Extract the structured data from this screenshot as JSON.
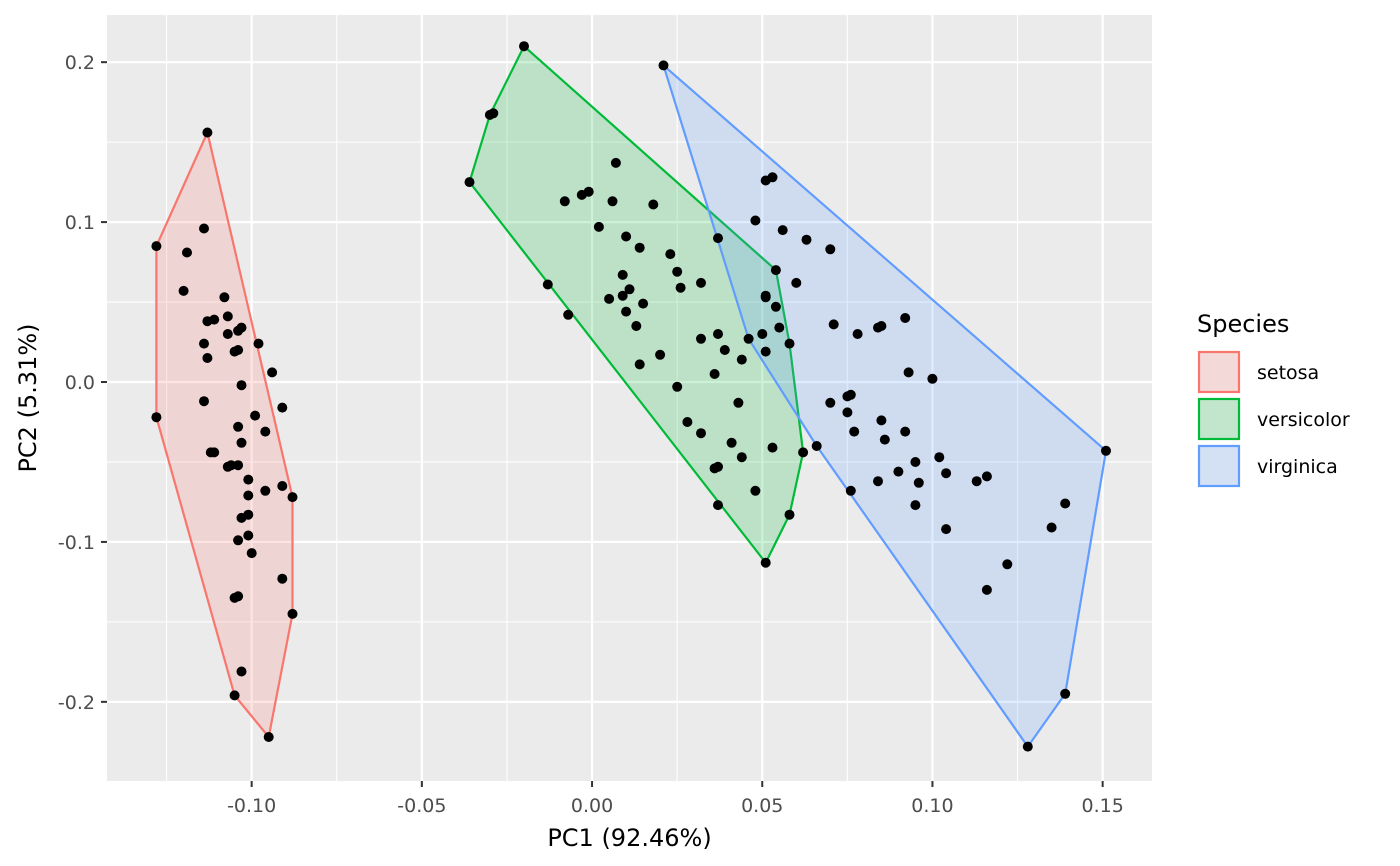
{
  "chart_data": {
    "type": "scatter",
    "title": "",
    "xlabel": "PC1 (92.46%)",
    "ylabel": "PC2 (5.31%)",
    "xlim": [
      -0.1425,
      0.1645
    ],
    "ylim": [
      -0.2495,
      0.2295
    ],
    "x_ticks": [
      -0.1,
      -0.05,
      0.0,
      0.05,
      0.1,
      0.15
    ],
    "x_tick_labels": [
      "-0.10",
      "-0.05",
      "0.00",
      "0.05",
      "0.10",
      "0.15"
    ],
    "y_ticks": [
      -0.2,
      -0.1,
      0.0,
      0.1,
      0.2
    ],
    "y_tick_labels": [
      "-0.2",
      "-0.1",
      "0.0",
      "0.1",
      "0.2"
    ],
    "grid": true,
    "legend": {
      "title": "Species",
      "position": "right"
    },
    "point_color": "#000000",
    "panel_background": "#ebebeb",
    "series": [
      {
        "name": "setosa",
        "color": "#f8766d",
        "fill": "#f8766d",
        "hull": [
          [
            -0.113,
            0.156
          ],
          [
            -0.128,
            0.085
          ],
          [
            -0.128,
            -0.022
          ],
          [
            -0.105,
            -0.196
          ],
          [
            -0.095,
            -0.222
          ],
          [
            -0.088,
            -0.145
          ],
          [
            -0.088,
            -0.072
          ],
          [
            -0.113,
            0.156
          ]
        ],
        "points": [
          [
            -0.113,
            0.156
          ],
          [
            -0.128,
            0.085
          ],
          [
            -0.114,
            0.096
          ],
          [
            -0.119,
            0.081
          ],
          [
            -0.12,
            0.057
          ],
          [
            -0.108,
            0.053
          ],
          [
            -0.113,
            0.038
          ],
          [
            -0.111,
            0.039
          ],
          [
            -0.107,
            0.041
          ],
          [
            -0.107,
            0.03
          ],
          [
            -0.104,
            0.032
          ],
          [
            -0.103,
            0.034
          ],
          [
            -0.098,
            0.024
          ],
          [
            -0.114,
            0.024
          ],
          [
            -0.113,
            0.015
          ],
          [
            -0.105,
            0.019
          ],
          [
            -0.104,
            0.02
          ],
          [
            -0.094,
            0.006
          ],
          [
            -0.103,
            -0.002
          ],
          [
            -0.114,
            -0.012
          ],
          [
            -0.128,
            -0.022
          ],
          [
            -0.099,
            -0.021
          ],
          [
            -0.091,
            -0.016
          ],
          [
            -0.104,
            -0.028
          ],
          [
            -0.096,
            -0.031
          ],
          [
            -0.103,
            -0.038
          ],
          [
            -0.112,
            -0.044
          ],
          [
            -0.111,
            -0.044
          ],
          [
            -0.107,
            -0.053
          ],
          [
            -0.106,
            -0.052
          ],
          [
            -0.104,
            -0.052
          ],
          [
            -0.101,
            -0.061
          ],
          [
            -0.096,
            -0.068
          ],
          [
            -0.091,
            -0.065
          ],
          [
            -0.088,
            -0.072
          ],
          [
            -0.101,
            -0.071
          ],
          [
            -0.103,
            -0.085
          ],
          [
            -0.101,
            -0.083
          ],
          [
            -0.104,
            -0.099
          ],
          [
            -0.101,
            -0.096
          ],
          [
            -0.1,
            -0.107
          ],
          [
            -0.091,
            -0.123
          ],
          [
            -0.105,
            -0.135
          ],
          [
            -0.104,
            -0.134
          ],
          [
            -0.088,
            -0.145
          ],
          [
            -0.103,
            -0.181
          ],
          [
            -0.105,
            -0.196
          ],
          [
            -0.095,
            -0.222
          ]
        ]
      },
      {
        "name": "versicolor",
        "color": "#00ba38",
        "fill": "#00ba38",
        "hull": [
          [
            -0.036,
            0.125
          ],
          [
            -0.03,
            0.167
          ],
          [
            -0.02,
            0.21
          ],
          [
            0.054,
            0.07
          ],
          [
            0.058,
            0.024
          ],
          [
            0.062,
            -0.044
          ],
          [
            0.058,
            -0.083
          ],
          [
            0.051,
            -0.113
          ],
          [
            -0.036,
            0.125
          ]
        ],
        "points": [
          [
            -0.02,
            0.21
          ],
          [
            -0.03,
            0.167
          ],
          [
            -0.029,
            0.168
          ],
          [
            -0.036,
            0.125
          ],
          [
            0.007,
            0.137
          ],
          [
            -0.008,
            0.113
          ],
          [
            -0.003,
            0.117
          ],
          [
            -0.001,
            0.119
          ],
          [
            0.006,
            0.113
          ],
          [
            0.018,
            0.111
          ],
          [
            0.002,
            0.097
          ],
          [
            0.01,
            0.091
          ],
          [
            0.014,
            0.084
          ],
          [
            0.023,
            0.08
          ],
          [
            0.025,
            0.069
          ],
          [
            0.009,
            0.067
          ],
          [
            0.026,
            0.059
          ],
          [
            0.032,
            0.062
          ],
          [
            -0.013,
            0.061
          ],
          [
            0.011,
            0.058
          ],
          [
            0.009,
            0.054
          ],
          [
            0.005,
            0.052
          ],
          [
            0.015,
            0.049
          ],
          [
            0.01,
            0.044
          ],
          [
            0.013,
            0.035
          ],
          [
            -0.007,
            0.042
          ],
          [
            0.032,
            0.027
          ],
          [
            0.037,
            0.03
          ],
          [
            0.039,
            0.02
          ],
          [
            0.044,
            0.014
          ],
          [
            0.02,
            0.017
          ],
          [
            0.014,
            0.011
          ],
          [
            0.036,
            0.005
          ],
          [
            0.025,
            -0.003
          ],
          [
            0.043,
            -0.013
          ],
          [
            0.028,
            -0.025
          ],
          [
            0.032,
            -0.032
          ],
          [
            0.041,
            -0.038
          ],
          [
            0.044,
            -0.047
          ],
          [
            0.053,
            -0.041
          ],
          [
            0.036,
            -0.054
          ],
          [
            0.037,
            -0.053
          ],
          [
            0.048,
            -0.068
          ],
          [
            0.037,
            -0.077
          ],
          [
            0.058,
            -0.083
          ],
          [
            0.051,
            -0.113
          ],
          [
            0.054,
            0.07
          ],
          [
            0.058,
            0.024
          ],
          [
            0.062,
            -0.044
          ],
          [
            0.051,
            0.054
          ]
        ]
      },
      {
        "name": "virginica",
        "color": "#619cff",
        "fill": "#619cff",
        "hull": [
          [
            0.021,
            0.198
          ],
          [
            0.151,
            -0.043
          ],
          [
            0.139,
            -0.195
          ],
          [
            0.128,
            -0.228
          ],
          [
            0.066,
            -0.04
          ],
          [
            0.046,
            0.027
          ],
          [
            0.021,
            0.198
          ]
        ],
        "points": [
          [
            0.021,
            0.198
          ],
          [
            0.051,
            0.126
          ],
          [
            0.053,
            0.128
          ],
          [
            0.048,
            0.101
          ],
          [
            0.056,
            0.095
          ],
          [
            0.063,
            0.089
          ],
          [
            0.07,
            0.083
          ],
          [
            0.037,
            0.09
          ],
          [
            0.06,
            0.062
          ],
          [
            0.054,
            0.047
          ],
          [
            0.051,
            0.053
          ],
          [
            0.055,
            0.034
          ],
          [
            0.05,
            0.03
          ],
          [
            0.046,
            0.027
          ],
          [
            0.051,
            0.019
          ],
          [
            0.071,
            0.036
          ],
          [
            0.078,
            0.03
          ],
          [
            0.084,
            0.034
          ],
          [
            0.085,
            0.035
          ],
          [
            0.092,
            0.04
          ],
          [
            0.093,
            0.006
          ],
          [
            0.1,
            0.002
          ],
          [
            0.075,
            -0.009
          ],
          [
            0.076,
            -0.008
          ],
          [
            0.07,
            -0.013
          ],
          [
            0.075,
            -0.019
          ],
          [
            0.077,
            -0.031
          ],
          [
            0.085,
            -0.024
          ],
          [
            0.086,
            -0.036
          ],
          [
            0.092,
            -0.031
          ],
          [
            0.066,
            -0.04
          ],
          [
            0.084,
            -0.062
          ],
          [
            0.09,
            -0.056
          ],
          [
            0.095,
            -0.05
          ],
          [
            0.096,
            -0.063
          ],
          [
            0.102,
            -0.047
          ],
          [
            0.104,
            -0.057
          ],
          [
            0.113,
            -0.062
          ],
          [
            0.116,
            -0.059
          ],
          [
            0.076,
            -0.068
          ],
          [
            0.095,
            -0.077
          ],
          [
            0.104,
            -0.092
          ],
          [
            0.122,
            -0.114
          ],
          [
            0.116,
            -0.13
          ],
          [
            0.135,
            -0.091
          ],
          [
            0.139,
            -0.076
          ],
          [
            0.151,
            -0.043
          ],
          [
            0.139,
            -0.195
          ],
          [
            0.128,
            -0.228
          ]
        ]
      }
    ]
  }
}
